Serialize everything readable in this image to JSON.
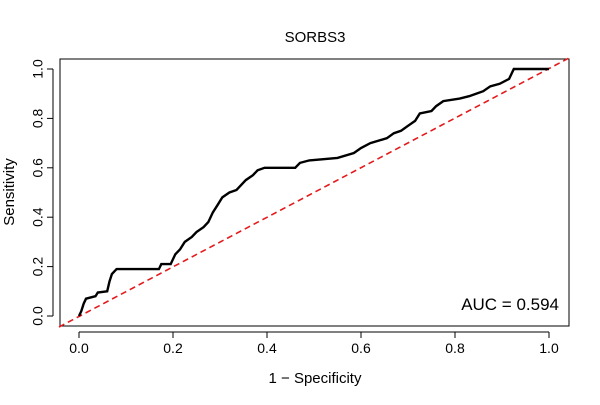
{
  "chart_data": {
    "type": "line",
    "title": "SORBS3",
    "xlabel": "1 − Specificity",
    "ylabel": "Sensitivity",
    "xlim": [
      0.0,
      1.0
    ],
    "ylim": [
      0.0,
      1.0
    ],
    "x_ticks": [
      0.0,
      0.2,
      0.4,
      0.6,
      0.8,
      1.0
    ],
    "y_ticks": [
      0.0,
      0.2,
      0.4,
      0.6,
      0.8,
      1.0
    ],
    "x_tick_labels": [
      "0.0",
      "0.2",
      "0.4",
      "0.6",
      "0.8",
      "1.0"
    ],
    "y_tick_labels": [
      "0.0",
      "0.2",
      "0.4",
      "0.6",
      "0.8",
      "1.0"
    ],
    "grid": false,
    "annotation": "AUC = 0.594",
    "colors": {
      "roc": "#000000",
      "reference": "#e41a1c",
      "box": "#000000"
    },
    "series": [
      {
        "style": "solid",
        "points": [
          [
            0.0,
            0.0
          ],
          [
            0.005,
            0.02
          ],
          [
            0.01,
            0.05
          ],
          [
            0.015,
            0.07
          ],
          [
            0.035,
            0.08
          ],
          [
            0.04,
            0.095
          ],
          [
            0.06,
            0.1
          ],
          [
            0.065,
            0.14
          ],
          [
            0.07,
            0.17
          ],
          [
            0.08,
            0.19
          ],
          [
            0.17,
            0.19
          ],
          [
            0.175,
            0.21
          ],
          [
            0.195,
            0.21
          ],
          [
            0.205,
            0.25
          ],
          [
            0.215,
            0.27
          ],
          [
            0.225,
            0.3
          ],
          [
            0.24,
            0.32
          ],
          [
            0.25,
            0.34
          ],
          [
            0.265,
            0.36
          ],
          [
            0.275,
            0.38
          ],
          [
            0.285,
            0.42
          ],
          [
            0.295,
            0.45
          ],
          [
            0.305,
            0.48
          ],
          [
            0.32,
            0.5
          ],
          [
            0.335,
            0.51
          ],
          [
            0.345,
            0.53
          ],
          [
            0.355,
            0.55
          ],
          [
            0.37,
            0.57
          ],
          [
            0.38,
            0.59
          ],
          [
            0.395,
            0.6
          ],
          [
            0.46,
            0.6
          ],
          [
            0.47,
            0.62
          ],
          [
            0.49,
            0.63
          ],
          [
            0.55,
            0.64
          ],
          [
            0.585,
            0.66
          ],
          [
            0.6,
            0.68
          ],
          [
            0.62,
            0.7
          ],
          [
            0.655,
            0.72
          ],
          [
            0.67,
            0.74
          ],
          [
            0.685,
            0.75
          ],
          [
            0.7,
            0.77
          ],
          [
            0.715,
            0.79
          ],
          [
            0.725,
            0.82
          ],
          [
            0.75,
            0.83
          ],
          [
            0.76,
            0.85
          ],
          [
            0.775,
            0.87
          ],
          [
            0.81,
            0.88
          ],
          [
            0.83,
            0.89
          ],
          [
            0.845,
            0.9
          ],
          [
            0.86,
            0.91
          ],
          [
            0.875,
            0.93
          ],
          [
            0.895,
            0.94
          ],
          [
            0.915,
            0.96
          ],
          [
            0.925,
            1.0
          ],
          [
            1.0,
            1.0
          ]
        ]
      },
      {
        "style": "dashed",
        "points": [
          [
            0.0,
            0.0
          ],
          [
            1.0,
            1.0
          ]
        ]
      }
    ]
  }
}
